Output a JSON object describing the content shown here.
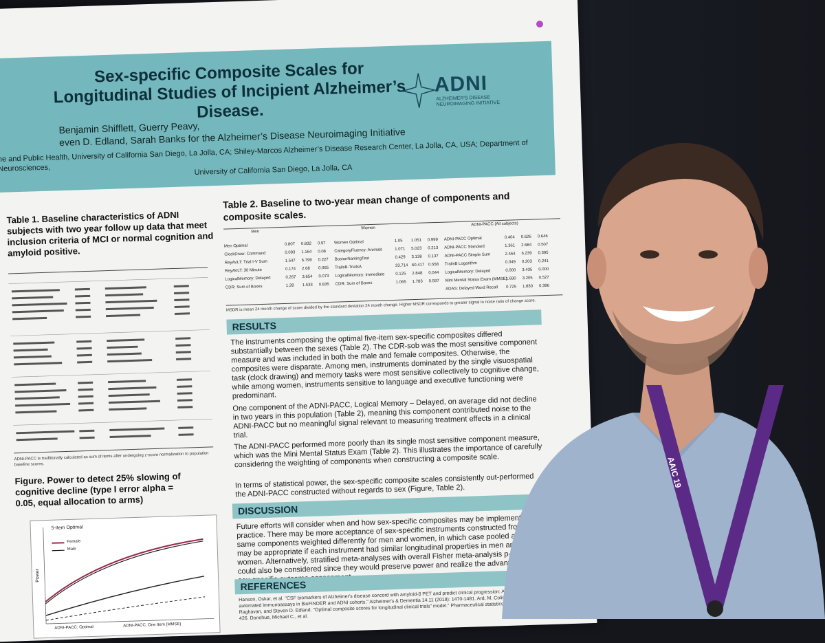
{
  "poster": {
    "title_line1": "Sex-specific Composite Scales for",
    "title_line2": "Longitudinal Studies of Incipient Alzheimer’s Disease.",
    "authors_line1": "Benjamin Shifflett, Guerry Peavy,",
    "authors_line2": "even D. Edland, Sarah Banks for the Alzheimer’s Disease Neuroimaging Initiative",
    "affiliation_line1": "ne and Public Health, University of California San Diego, La Jolla, CA; Shiley-Marcos Alzheimer’s Disease Research Center, La Jolla, CA, USA; Department of Neurosciences,",
    "affiliation_line2": "University of California San Diego, La Jolla, CA",
    "logo_text": "ADNI",
    "logo_sub": "ALZHEIMER’S DISEASE NEUROIMAGING INITIATIVE",
    "table1_heading": "Table 1. Baseline characteristics of ADNI subjects with two year follow up data that meet inclusion criteria of MCI or normal cognition and amyloid positive.",
    "table2_heading": "Table 2. Baseline to two-year mean change of components and composite scales.",
    "table2_groups": [
      "Men",
      "Women",
      "ADNI-PACC (All subjects)"
    ],
    "table2_cols": [
      "Mean",
      "SD",
      "MSDR"
    ],
    "table2_men": [
      [
        "Men Optimal",
        "0.807",
        "0.832",
        "0.97"
      ],
      [
        "ClockDraw: Command",
        "0.093",
        "1.164",
        "0.08"
      ],
      [
        "ReyAVLT: Trial I-V Sum",
        "1.547",
        "6.799",
        "0.227"
      ],
      [
        "ReyAVLT: 30 Minute",
        "0.174",
        "2.68",
        "0.065"
      ],
      [
        "LogicalMemory: Delayed",
        "0.267",
        "3.654",
        "0.073"
      ],
      [
        "CDR: Sum of Boxes",
        "1.28",
        "1.533",
        "0.835"
      ]
    ],
    "table2_women": [
      [
        "Women Optimal",
        "1.05",
        "1.051",
        "0.999"
      ],
      [
        "CategoryFluency: Animals",
        "1.071",
        "5.023",
        "0.213"
      ],
      [
        "BostonNamingTest",
        "0.429",
        "3.138",
        "0.137"
      ],
      [
        "TrailsB-TrialsA",
        "33.714",
        "60.417",
        "0.558"
      ],
      [
        "LogicalMemory: Immediate",
        "0.125",
        "2.848",
        "0.044"
      ],
      [
        "CDR: Sum of Boxes",
        "1.065",
        "1.783",
        "0.597"
      ]
    ],
    "table2_pacc": [
      [
        "ADNI-PACC Optimal",
        "0.404",
        "0.626",
        "0.646"
      ],
      [
        "ADNI-PACC Standard",
        "1.361",
        "2.684",
        "0.507"
      ],
      [
        "ADNI-PACC Simple Sum",
        "2.464",
        "6.239",
        "0.395"
      ],
      [
        "TrailsB Logarithm",
        "0.049",
        "0.203",
        "0.241"
      ],
      [
        "LogicalMemory: Delayed",
        "0.000",
        "3.435",
        "0.000"
      ],
      [
        "Mini Mental Status Exam (MMSE)",
        "1.690",
        "3.205",
        "0.527"
      ],
      [
        "ADAS: Delayed Word Recall",
        "0.725",
        "1.830",
        "0.396"
      ]
    ],
    "table2_note": "MSDR is mean 24 month change of score divided by the standard deviation 24 month change. Higher MSDR corresponds to greater signal to noise ratio of change score.",
    "results_heading": "RESULTS",
    "results_p1": "The instruments composing the optimal five-item sex-specific composites differed substantially between the sexes (Table 2). The CDR-sob was the most sensitive component measure and was included in both the male and female composites. Otherwise, the composites were disparate. Among men, instruments dominated by the single visuospatial task (clock drawing) and memory tasks were most sensitive collectively to cognitive change, while among women, instruments sensitive to language and executive functioning were predominant.",
    "results_p2": "One component of the ADNI-PACC, Logical Memory – Delayed, on average did not decline in two years in this population (Table 2), meaning this component contributed noise to the ADNI-PACC but no meaningful signal relevant to measuring treatment effects in a clinical trial.",
    "results_p3": "The ADNI-PACC performed more poorly than its single most sensitive component measure, which was the Mini Mental Status Exam (Table 2). This illustrates the importance of carefully considering the weighting of components when constructing a composite scale.",
    "results_p4": "In terms of statistical power, the sex-specific composite scales consistently out-performed the ADNI-PACC constructed without regards to sex (Figure, Table 2).",
    "discussion_heading": "DISCUSSION",
    "discussion_p1": "Future efforts will consider when and how sex-specific composites may be implemented in practice. There may be more acceptance of sex-specific instruments constructed from the same components weighted differently for men and women, in which case pooled analyses may be appropriate if each instrument had similar longitudinal properties in men and women. Alternatively, stratified meta-analyses with overall Fisher meta-analysis p-values could also be considered since they would preserve power and realize the advantages of sex-specific outcome assessment.",
    "references_heading": "REFERENCES",
    "references_text": "Hanson, Oskar, et al. \"CSF biomarkers of Alzheimer's disease concord with amyloid-β PET and predict clinical progression: A study of fully automated immunoassays in BioFINDER and ADNI cohorts.\" Alzheimer's & Dementia 14.11 (2018): 1470-1481. Ard, M. Colin, Nandini Raghavan, and Steven D. Edland. \"Optimal composite scores for longitudinal clinical trials\" model.\" Pharmaceutical statistics 14.5 (2015): 418-426. Donohue, Michael C., et al.",
    "figure_heading": "Figure. Power to detect 25% slowing of cognitive decline (type I error alpha = 0.05, equal allocation to arms)",
    "figure_legend_title": "5-Item Optimal",
    "figure_legend": [
      "Female",
      "Male"
    ],
    "figure_bottom_legend": [
      "ADNI-PACC: Optimal",
      "ADNI-PACC: One Item (MMSE)"
    ],
    "figure_ylabel": "Power",
    "table1_note": "ADNI-PACC is traditionally calculated as sum of items after undergoing z-score normalization to population baseline scores."
  },
  "badge": {
    "text": "AAIC 19",
    "lanyard_color": "#5a2a86"
  },
  "colors": {
    "banner": "#74b7bc",
    "section_bar": "#8fc4c7",
    "title_text": "#0d2f3a",
    "shirt": "#9fb3cc",
    "background": "#14161c"
  }
}
